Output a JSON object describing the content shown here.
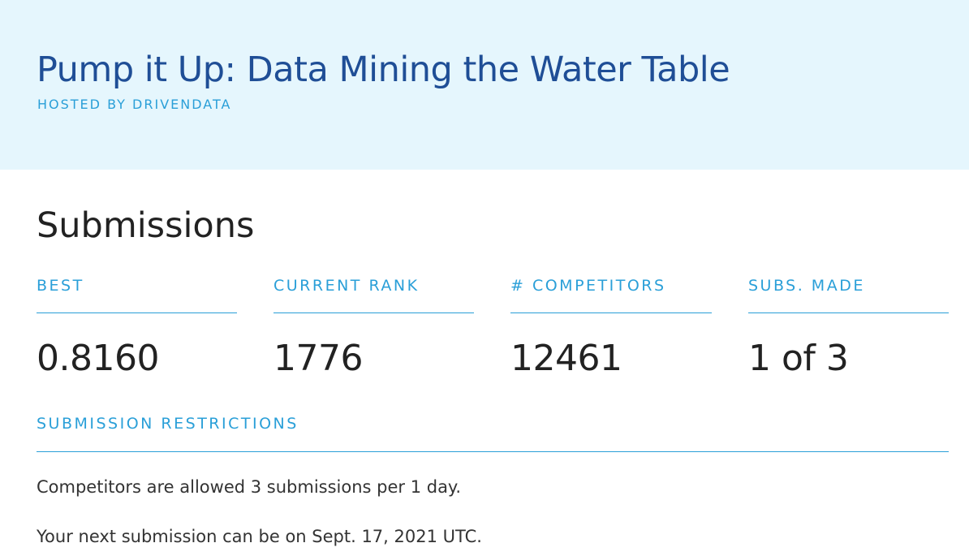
{
  "header": {
    "title": "Pump it Up: Data Mining the Water Table",
    "host": "HOSTED BY DRIVENDATA"
  },
  "submissions": {
    "heading": "Submissions",
    "stats": [
      {
        "label": "BEST",
        "value": "0.8160"
      },
      {
        "label": "CURRENT RANK",
        "value": "1776"
      },
      {
        "label": "# COMPETITORS",
        "value": "12461"
      },
      {
        "label": "SUBS. MADE",
        "value": "1 of 3"
      }
    ],
    "restrictions": {
      "label": "SUBMISSION RESTRICTIONS",
      "lines": [
        "Competitors are allowed 3 submissions per 1 day.",
        "Your next submission can be on Sept. 17, 2021 UTC."
      ]
    }
  },
  "colors": {
    "banner_bg": "#e5f6fd",
    "title": "#1f4e96",
    "accent": "#2a9fd8",
    "text": "#222222"
  }
}
